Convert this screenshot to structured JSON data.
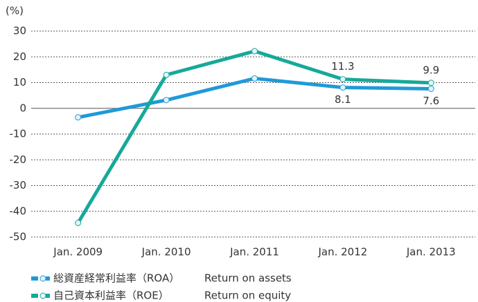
{
  "chart_data": {
    "type": "line",
    "y_label": "(%)",
    "categories": [
      "Jan. 2009",
      "Jan. 2010",
      "Jan. 2011",
      "Jan. 2012",
      "Jan. 2013"
    ],
    "series": [
      {
        "name": "総資産経常利益率（ROA）",
        "note": "Return on assets",
        "color": "#1e9ad8",
        "values": [
          -3.5,
          3.2,
          11.6,
          8.1,
          7.6
        ],
        "value_labels": [
          null,
          null,
          null,
          "8.1",
          "7.6"
        ]
      },
      {
        "name": "自己資本利益率（ROE）",
        "note": "Return on equity",
        "color": "#16a99a",
        "values": [
          -44.5,
          13.0,
          22.2,
          11.3,
          9.9
        ],
        "value_labels": [
          null,
          null,
          null,
          "11.3",
          "9.9"
        ]
      }
    ],
    "ylim": [
      -50,
      30
    ],
    "yticks": [
      -50,
      -40,
      -30,
      -20,
      -10,
      0,
      10,
      20,
      30
    ],
    "grid": true
  }
}
